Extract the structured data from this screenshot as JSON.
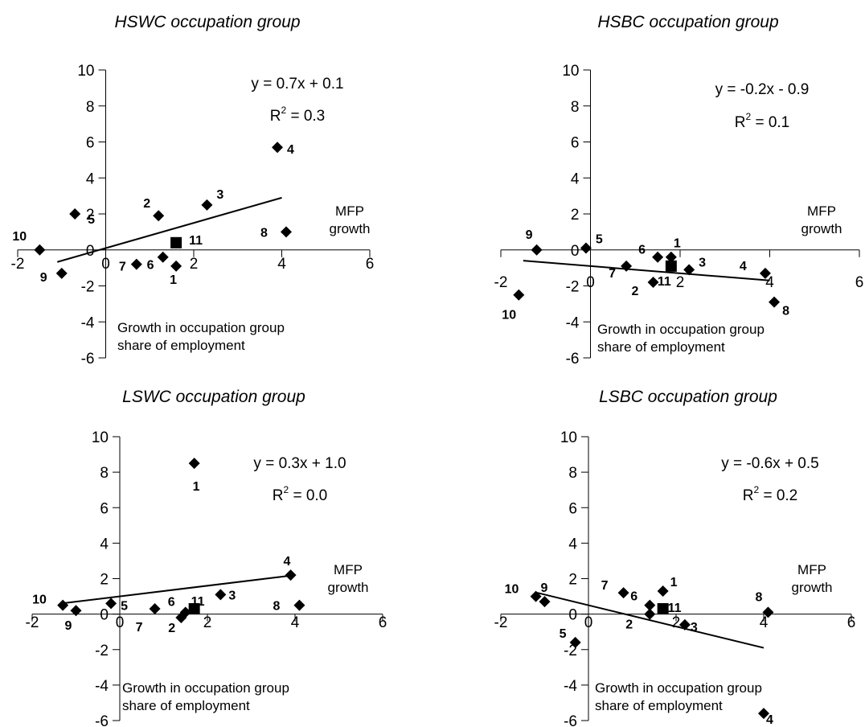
{
  "chart_data": [
    {
      "type": "scatter",
      "title": "HSWC occupation group",
      "xlabel": "MFP growth",
      "ylabel": "Growth in occupation group share of employment",
      "x_ticks": [
        "-2",
        "0",
        "2",
        "4",
        "6"
      ],
      "y_ticks": [
        "10",
        "8",
        "6",
        "4",
        "2",
        "0",
        "-2",
        "-4",
        "-6"
      ],
      "xlim": [
        -2,
        6
      ],
      "ylim": [
        -6,
        10
      ],
      "equation": "y = 0.7x + 0.1",
      "r2_prefix": "R",
      "r2_sup": "2",
      "r2_value": " = 0.3",
      "trend": {
        "slope": 0.7,
        "intercept": 0.1,
        "x_range": [
          -1.1,
          4.0
        ]
      },
      "points": [
        {
          "label": "1",
          "x": 1.6,
          "y": -0.9
        },
        {
          "label": "2",
          "x": 1.2,
          "y": 1.9
        },
        {
          "label": "3",
          "x": 2.3,
          "y": 2.5
        },
        {
          "label": "4",
          "x": 3.9,
          "y": 5.7
        },
        {
          "label": "5",
          "x": -0.7,
          "y": 2.0
        },
        {
          "label": "6",
          "x": 1.3,
          "y": -0.4
        },
        {
          "label": "7",
          "x": 0.7,
          "y": -0.8
        },
        {
          "label": "8",
          "x": 4.1,
          "y": 1.0
        },
        {
          "label": "9",
          "x": -1.0,
          "y": -1.3
        },
        {
          "label": "10",
          "x": -1.5,
          "y": 0.0
        },
        {
          "label": "11",
          "x": 1.6,
          "y": 0.4,
          "marker": "square"
        }
      ]
    },
    {
      "type": "scatter",
      "title": "HSBC occupation group",
      "xlabel": "MFP growth",
      "ylabel": "Growth in occupation group share of employment",
      "x_ticks": [
        "-2",
        "0",
        "2",
        "4",
        "6"
      ],
      "y_ticks": [
        "10",
        "8",
        "6",
        "4",
        "2",
        "0",
        "-2",
        "-4",
        "-6"
      ],
      "xlim": [
        -2,
        6
      ],
      "ylim": [
        -6,
        10
      ],
      "equation": "y = -0.2x - 0.9",
      "r2_prefix": "R",
      "r2_sup": "2",
      "r2_value": " = 0.1",
      "trend": {
        "slope": -0.2,
        "intercept": -0.9,
        "x_range": [
          -1.5,
          4.0
        ]
      },
      "points": [
        {
          "label": "1",
          "x": 1.8,
          "y": -0.4
        },
        {
          "label": "2",
          "x": 1.4,
          "y": -1.8
        },
        {
          "label": "3",
          "x": 2.2,
          "y": -1.1
        },
        {
          "label": "4",
          "x": 3.9,
          "y": -1.3
        },
        {
          "label": "5",
          "x": -0.1,
          "y": 0.1
        },
        {
          "label": "6",
          "x": 1.5,
          "y": -0.4
        },
        {
          "label": "7",
          "x": 0.8,
          "y": -0.9
        },
        {
          "label": "8",
          "x": 4.1,
          "y": -2.9
        },
        {
          "label": "9",
          "x": -1.2,
          "y": 0.0
        },
        {
          "label": "10",
          "x": -1.6,
          "y": -2.5
        },
        {
          "label": "11",
          "x": 1.8,
          "y": -0.9,
          "marker": "square"
        }
      ]
    },
    {
      "type": "scatter",
      "title": "LSWC occupation group",
      "xlabel": "MFP growth",
      "ylabel": "Growth in occupation group share of employment",
      "x_ticks": [
        "-2",
        "0",
        "2",
        "4",
        "6"
      ],
      "y_ticks": [
        "10",
        "8",
        "6",
        "4",
        "2",
        "0",
        "-2",
        "-4",
        "-6"
      ],
      "xlim": [
        -2,
        6
      ],
      "ylim": [
        -6,
        10
      ],
      "equation": "y = 0.3x + 1.0",
      "r2_prefix": "R",
      "r2_sup": "2",
      "r2_value": " = 0.0",
      "trend": {
        "slope": 0.3,
        "intercept": 1.0,
        "x_range": [
          -1.3,
          4.0
        ]
      },
      "points": [
        {
          "label": "1",
          "x": 1.7,
          "y": 8.5
        },
        {
          "label": "2",
          "x": 1.4,
          "y": -0.2
        },
        {
          "label": "3",
          "x": 2.3,
          "y": 1.1
        },
        {
          "label": "4",
          "x": 3.9,
          "y": 2.2
        },
        {
          "label": "5",
          "x": -0.2,
          "y": 0.6
        },
        {
          "label": "6",
          "x": 1.5,
          "y": 0.1
        },
        {
          "label": "7",
          "x": 0.8,
          "y": 0.3
        },
        {
          "label": "8",
          "x": 4.1,
          "y": 0.5
        },
        {
          "label": "9",
          "x": -1.0,
          "y": 0.2
        },
        {
          "label": "10",
          "x": -1.3,
          "y": 0.5
        },
        {
          "label": "11",
          "x": 1.7,
          "y": 0.3,
          "marker": "square"
        }
      ]
    },
    {
      "type": "scatter",
      "title": "LSBC occupation group",
      "xlabel": "MFP growth",
      "ylabel": "Growth in occupation group share of employment",
      "x_ticks": [
        "-2",
        "0",
        "2",
        "4",
        "6"
      ],
      "y_ticks": [
        "10",
        "8",
        "6",
        "4",
        "2",
        "0",
        "-2",
        "-4",
        "-6"
      ],
      "xlim": [
        -2,
        6
      ],
      "ylim": [
        -6,
        10
      ],
      "equation": "y = -0.6x + 0.5",
      "r2_prefix": "R",
      "r2_sup": "2",
      "r2_value": " = 0.2",
      "trend": {
        "slope": -0.6,
        "intercept": 0.5,
        "x_range": [
          -1.2,
          4.0
        ]
      },
      "points": [
        {
          "label": "1",
          "x": 1.7,
          "y": 1.3
        },
        {
          "label": "2",
          "x": 1.4,
          "y": 0.0
        },
        {
          "label": "3",
          "x": 2.2,
          "y": -0.6
        },
        {
          "label": "4",
          "x": 4.0,
          "y": -5.6
        },
        {
          "label": "5",
          "x": -0.3,
          "y": -1.6
        },
        {
          "label": "6",
          "x": 1.4,
          "y": 0.5
        },
        {
          "label": "7",
          "x": 0.8,
          "y": 1.2
        },
        {
          "label": "8",
          "x": 4.1,
          "y": 0.1
        },
        {
          "label": "9",
          "x": -1.0,
          "y": 0.7
        },
        {
          "label": "10",
          "x": -1.2,
          "y": 1.0
        },
        {
          "label": "11",
          "x": 1.7,
          "y": 0.3,
          "marker": "square"
        }
      ]
    }
  ]
}
